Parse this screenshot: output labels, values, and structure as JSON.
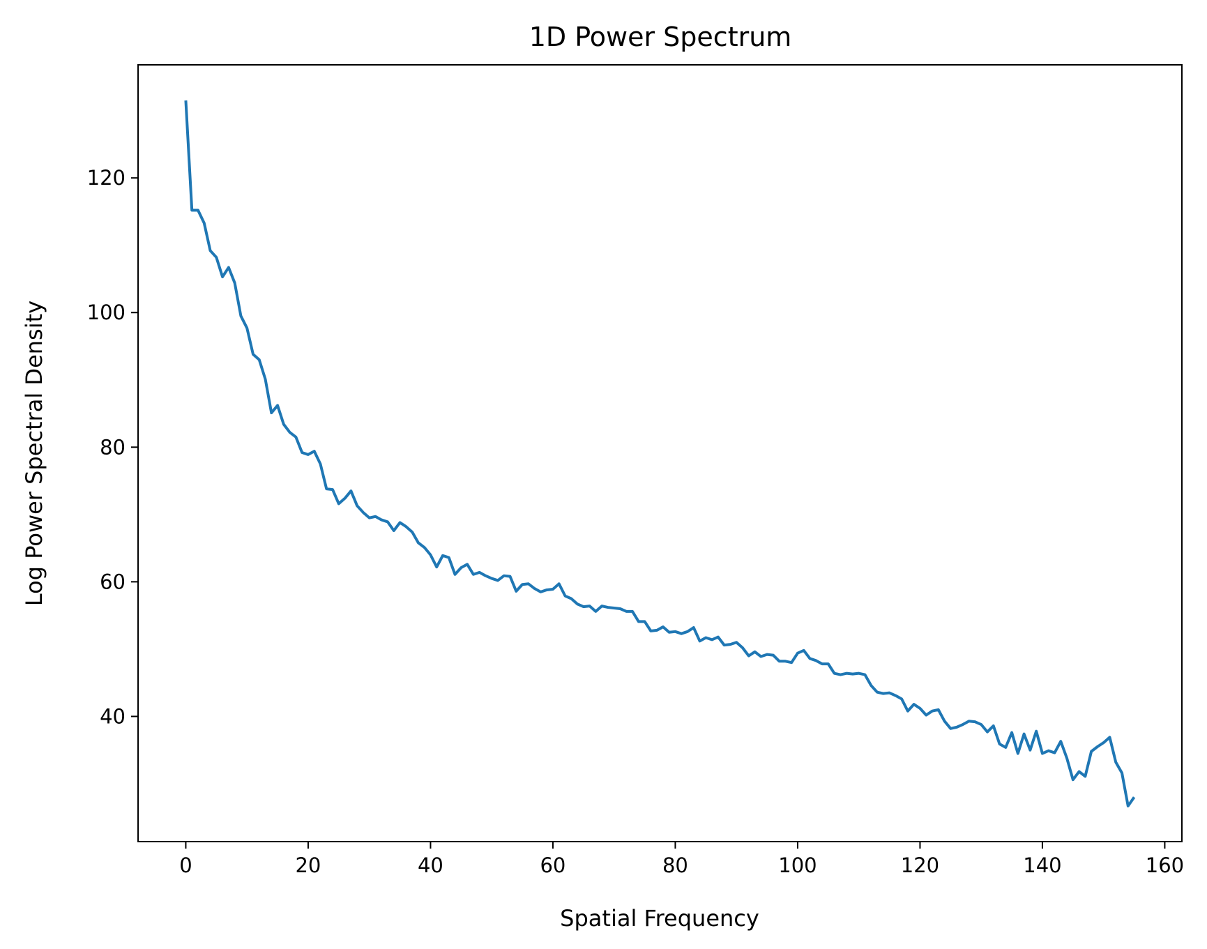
{
  "chart_data": {
    "type": "line",
    "title": "1D Power Spectrum",
    "xlabel": "Spatial Frequency",
    "ylabel": "Log Power Spectral Density",
    "xlim": [
      -7.8,
      162.8
    ],
    "ylim": [
      21.4,
      136.8
    ],
    "xticks": [
      0,
      20,
      40,
      60,
      80,
      100,
      120,
      140,
      160
    ],
    "yticks": [
      40,
      60,
      80,
      100,
      120
    ],
    "grid": false,
    "line_color": "#1f77b4",
    "series": [
      {
        "x": [
          0,
          1,
          2,
          3,
          4,
          5,
          6,
          7,
          8,
          9,
          10,
          11,
          12,
          13,
          14,
          15,
          16,
          17,
          18,
          19,
          20,
          21,
          22,
          23,
          24,
          25,
          26,
          27,
          28,
          29,
          30,
          31,
          32,
          33,
          34,
          35,
          36,
          37,
          38,
          39,
          40,
          41,
          42,
          43,
          44,
          45,
          46,
          47,
          48,
          49,
          50,
          51,
          52,
          53,
          54,
          55,
          56,
          57,
          58,
          59,
          60,
          61,
          62,
          63,
          64,
          65,
          66,
          67,
          68,
          69,
          70,
          71,
          72,
          73,
          74,
          75,
          76,
          77,
          78,
          79,
          80,
          81,
          82,
          83,
          84,
          85,
          86,
          87,
          88,
          89,
          90,
          91,
          92,
          93,
          94,
          95,
          96,
          97,
          98,
          99,
          100,
          101,
          102,
          103,
          104,
          105,
          106,
          107,
          108,
          109,
          110,
          111,
          112,
          113,
          114,
          115,
          116,
          117,
          118,
          119,
          120,
          121,
          122,
          123,
          124,
          125,
          126,
          127,
          128,
          129,
          130,
          131,
          132,
          133,
          134,
          135,
          136,
          137,
          138,
          139,
          140,
          141,
          142,
          143,
          144,
          145,
          146,
          147,
          148,
          149,
          150,
          151,
          152,
          153,
          154,
          155
        ],
        "values": [
          131.5,
          115.2,
          115.2,
          113.3,
          109.2,
          108.2,
          105.3,
          106.7,
          104.4,
          99.5,
          97.7,
          93.8,
          93.0,
          90.1,
          85.1,
          86.2,
          83.4,
          82.2,
          81.5,
          79.2,
          78.9,
          79.4,
          77.5,
          73.8,
          73.7,
          71.6,
          72.4,
          73.5,
          71.3,
          70.3,
          69.5,
          69.7,
          69.2,
          68.9,
          67.6,
          68.8,
          68.2,
          67.4,
          65.8,
          65.1,
          64.0,
          62.2,
          63.9,
          63.6,
          61.1,
          62.1,
          62.6,
          61.1,
          61.4,
          60.9,
          60.5,
          60.2,
          60.9,
          60.8,
          58.6,
          59.6,
          59.7,
          59.0,
          58.5,
          58.8,
          58.9,
          59.7,
          57.9,
          57.5,
          56.7,
          56.3,
          56.4,
          55.6,
          56.4,
          56.2,
          56.1,
          56.0,
          55.6,
          55.6,
          54.1,
          54.1,
          52.7,
          52.8,
          53.3,
          52.5,
          52.6,
          52.3,
          52.6,
          53.2,
          51.2,
          51.7,
          51.4,
          51.8,
          50.6,
          50.7,
          51.0,
          50.2,
          49.0,
          49.6,
          48.9,
          49.2,
          49.1,
          48.2,
          48.2,
          48.0,
          49.4,
          49.8,
          48.6,
          48.3,
          47.8,
          47.8,
          46.4,
          46.2,
          46.4,
          46.3,
          46.4,
          46.2,
          44.6,
          43.6,
          43.4,
          43.5,
          43.1,
          42.6,
          40.8,
          41.8,
          41.2,
          40.2,
          40.8,
          41.0,
          39.3,
          38.2,
          38.4,
          38.8,
          39.3,
          39.2,
          38.8,
          37.7,
          38.6,
          35.9,
          35.4,
          37.6,
          34.5,
          37.4,
          35.0,
          37.8,
          34.5,
          34.9,
          34.6,
          36.3,
          33.8,
          30.6,
          31.8,
          31.1,
          34.8,
          35.5,
          36.1,
          36.9,
          33.2,
          31.6,
          26.7,
          28.0
        ]
      }
    ]
  }
}
